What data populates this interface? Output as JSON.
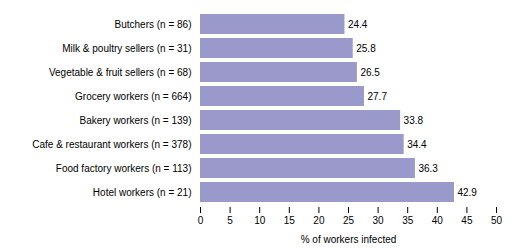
{
  "chart_data": {
    "type": "bar",
    "orientation": "horizontal",
    "categories": [
      "Hotel workers (n = 21)",
      "Food factory workers (n = 113)",
      "Cafe & restaurant workers (n = 378)",
      "Bakery workers (n = 139)",
      "Grocery workers (n = 664)",
      "Vegetable & fruit sellers (n = 68)",
      "Milk & poultry sellers (n = 31)",
      "Butchers (n = 86)"
    ],
    "values": [
      42.9,
      36.3,
      34.4,
      33.8,
      27.7,
      26.5,
      25.8,
      24.4
    ],
    "color": "#9999cc",
    "xlabel": "% of workers infected",
    "xlim": [
      0,
      50
    ],
    "xticks": [
      0,
      5,
      10,
      15,
      20,
      25,
      30,
      35,
      40,
      45,
      50
    ],
    "data_labels": true,
    "grid": false
  }
}
